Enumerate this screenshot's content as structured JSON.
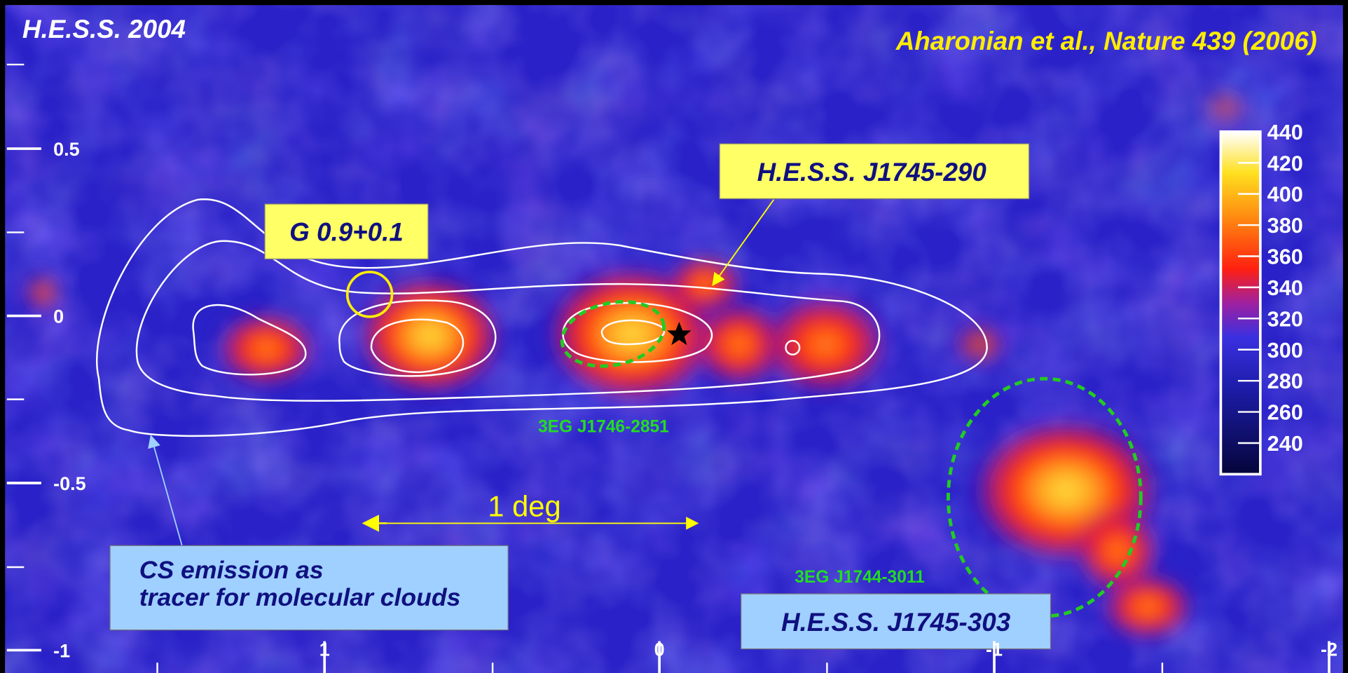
{
  "header": {
    "title": "H.E.S.S. 2004",
    "citation": "Aharonian et al., Nature 439 (2006)"
  },
  "axes": {
    "y_ticks": [
      0.5,
      0,
      -0.5,
      -1
    ],
    "x_ticks": [
      1,
      0,
      -1,
      -2
    ]
  },
  "colorbar": {
    "range": [
      220,
      440
    ],
    "ticks": [
      440,
      420,
      400,
      380,
      360,
      340,
      320,
      300,
      280,
      260,
      240
    ]
  },
  "annotations": {
    "hess_j1745_290": "H.E.S.S. J1745-290",
    "g_09": "G 0.9+0.1",
    "egret_j1746": "3EG J1746-2851",
    "scale_bar": "1 deg",
    "cs_emission": [
      "CS emission as",
      "tracer for molecular clouds"
    ],
    "egret_j1744": "3EG J1744-3011",
    "hess_j1745_303": "H.E.S.S. J1745-303"
  }
}
